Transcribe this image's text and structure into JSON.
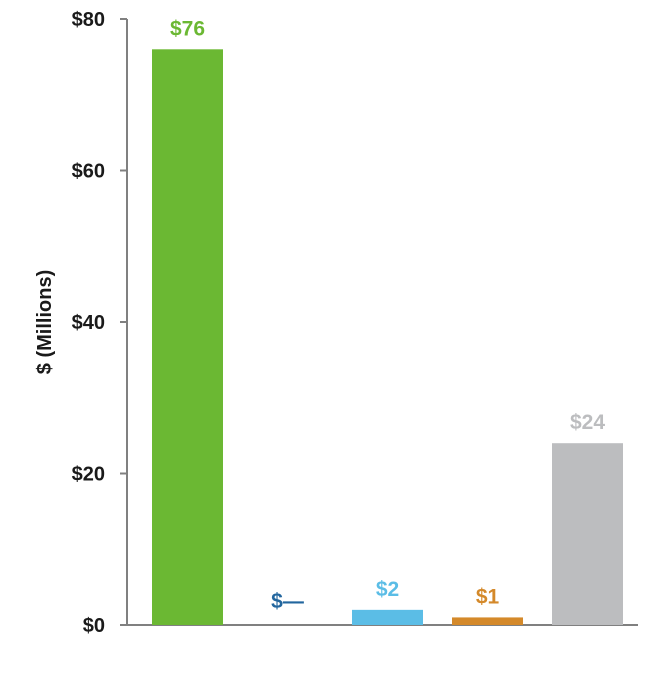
{
  "chart_data": {
    "type": "bar",
    "ylabel": "$ (Millions)",
    "ylim": [
      0,
      80
    ],
    "yticks": [
      0,
      20,
      40,
      60,
      80
    ],
    "ytick_labels": [
      "$0",
      "$20",
      "$40",
      "$60",
      "$80"
    ],
    "grid": false,
    "legend": "none",
    "series": [
      {
        "values": [
          76,
          0,
          2,
          1,
          24
        ]
      }
    ],
    "data_labels": [
      "$76",
      "$—",
      "$2",
      "$1",
      "$24"
    ],
    "colors": [
      "#6bb833",
      "#22669e",
      "#5bbde6",
      "#d4892a",
      "#bcbdbf"
    ],
    "axis_color": "#808080"
  }
}
